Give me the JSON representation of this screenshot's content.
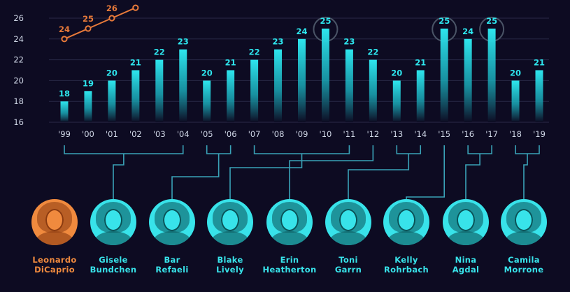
{
  "colors": {
    "background": "#0d0b22",
    "bar": "#2ee6ee",
    "bar_fade": "#0d0b22",
    "line": "#e87a3a",
    "axis_text": "#cfd6e6",
    "grid": "#2a2a48",
    "connector": "#3aa3b8",
    "circle": "#4a5466",
    "name_teal": "#38e3ea",
    "name_orange": "#f08a3e"
  },
  "chart_data": {
    "type": "bar",
    "categories": [
      "'99",
      "'00",
      "'01",
      "'02",
      "'03",
      "'04",
      "'05",
      "'06",
      "'07",
      "'08",
      "'09",
      "'10",
      "'11",
      "'12",
      "'13",
      "'14",
      "'15",
      "'16",
      "'17",
      "'18",
      "'19"
    ],
    "values": [
      18,
      19,
      20,
      21,
      22,
      23,
      20,
      21,
      22,
      23,
      24,
      25,
      23,
      22,
      20,
      21,
      25,
      24,
      25,
      20,
      21
    ],
    "y_ticks": [
      16,
      18,
      20,
      22,
      24,
      26
    ],
    "ylim": [
      16,
      27.5
    ],
    "circled_values_at": [
      "'10",
      "'15",
      "'17"
    ],
    "line_series": {
      "x": [
        "'99",
        "'00",
        "'01",
        "'02"
      ],
      "values": [
        24,
        25,
        26,
        27
      ],
      "labels": [
        "24",
        "25",
        "26",
        ""
      ]
    }
  },
  "groups": [
    {
      "from": "'99",
      "to": "'04"
    },
    {
      "from": "'05",
      "to": "'06"
    },
    {
      "from": "'07",
      "to": "'11"
    },
    {
      "from": "'12",
      "to": "'12"
    },
    {
      "from": "'13",
      "to": "'14"
    },
    {
      "from": "'15",
      "to": "'15"
    },
    {
      "from": "'16",
      "to": "'17"
    },
    {
      "from": "'18",
      "to": "'19"
    }
  ],
  "people": [
    {
      "first": "Leonardo",
      "last": "DiCaprio",
      "highlight": true
    },
    {
      "first": "Gisele",
      "last": "Bundchen"
    },
    {
      "first": "Bar",
      "last": "Refaeli"
    },
    {
      "first": "Blake",
      "last": "Lively"
    },
    {
      "first": "Erin",
      "last": "Heatherton"
    },
    {
      "first": "Toni",
      "last": "Garrn"
    },
    {
      "first": "Kelly",
      "last": "Rohrbach"
    },
    {
      "first": "Nina",
      "last": "Agdal"
    },
    {
      "first": "Camila",
      "last": "Morrone"
    }
  ]
}
